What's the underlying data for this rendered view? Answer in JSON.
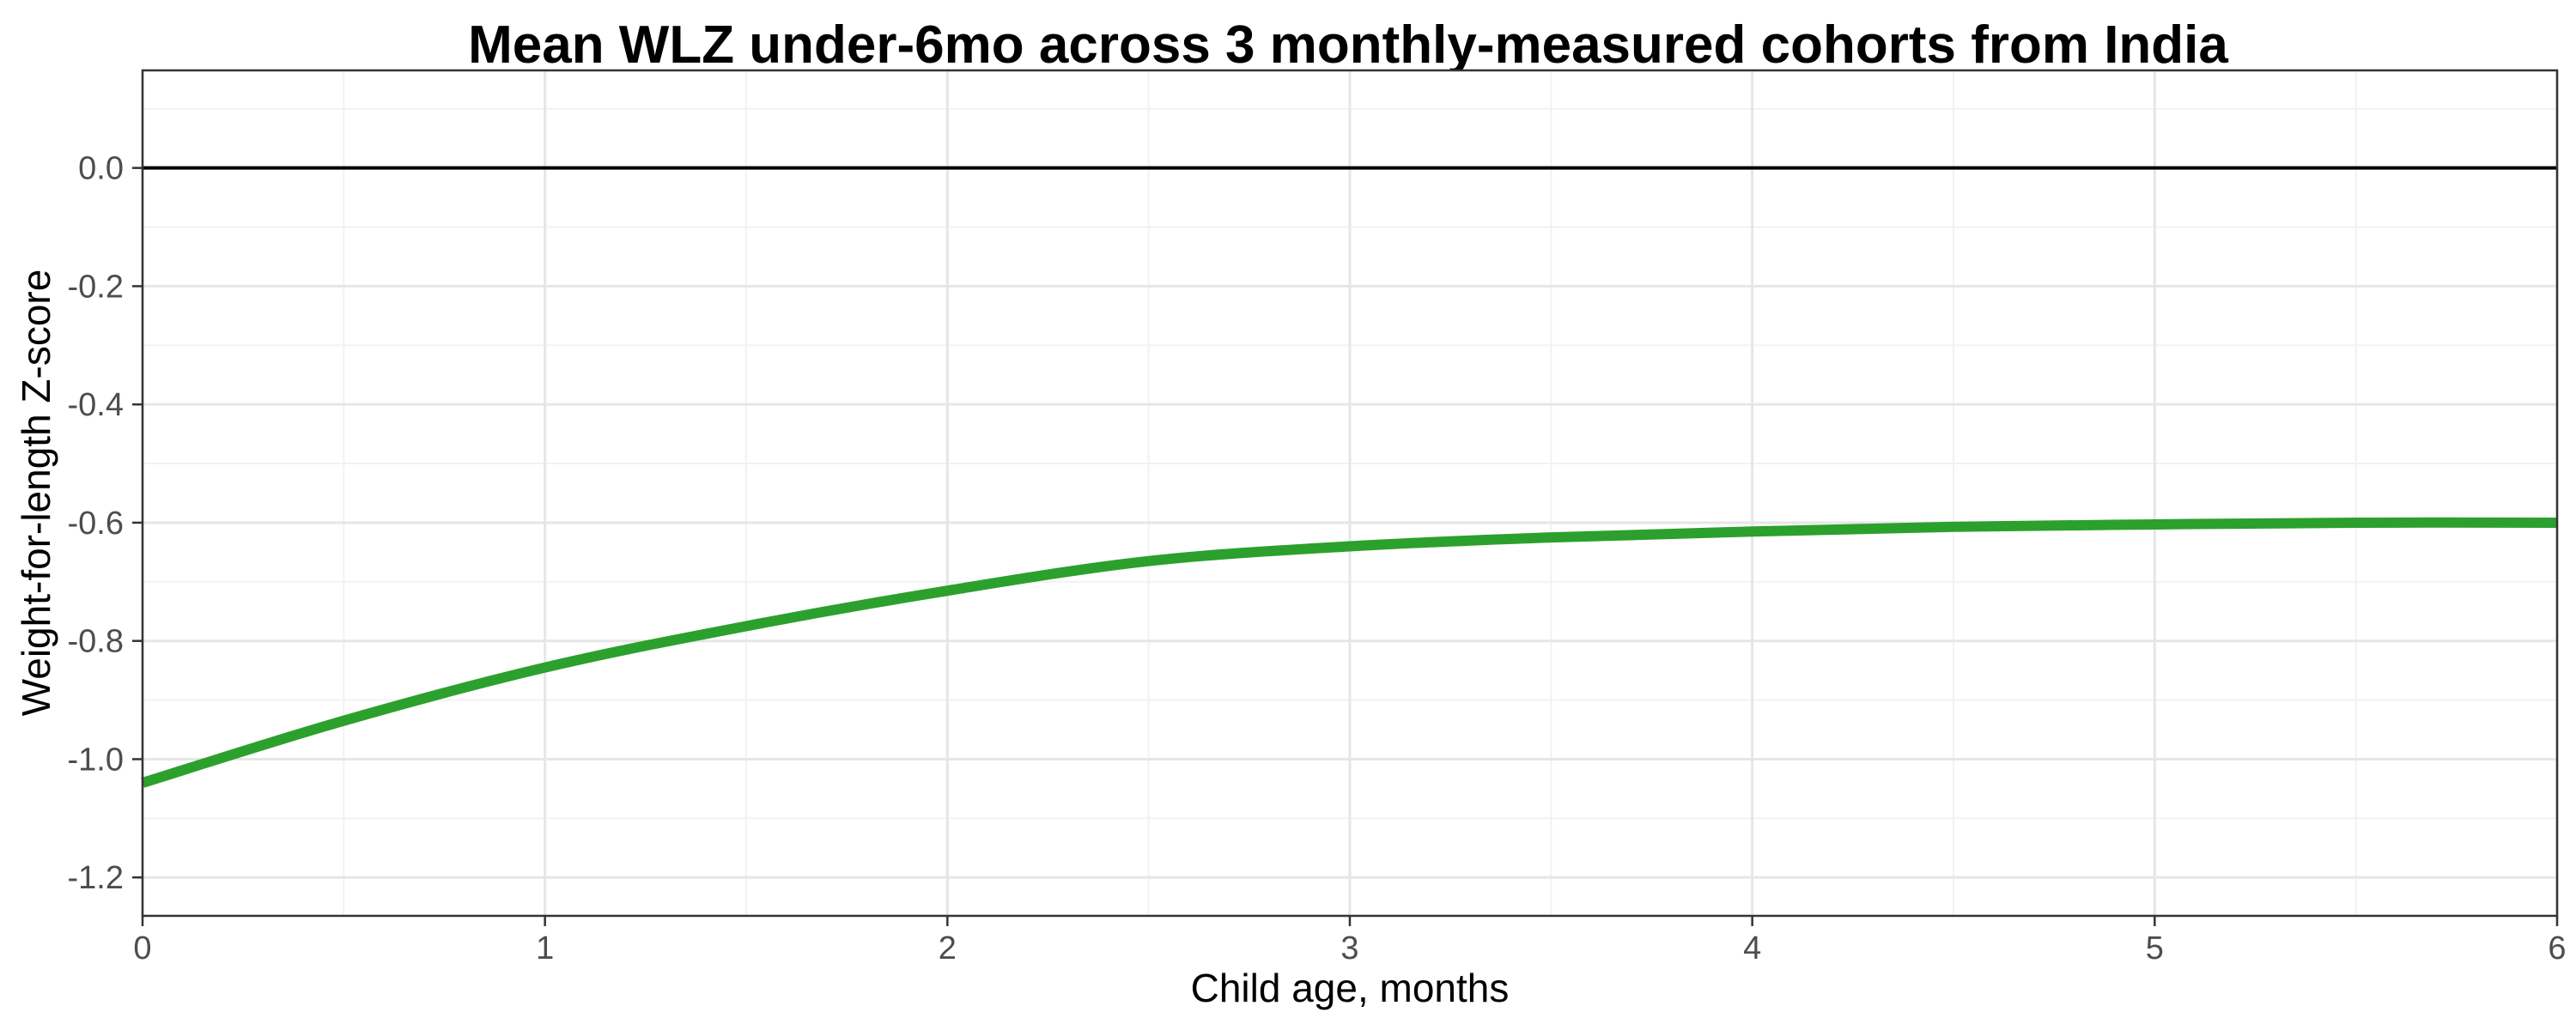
{
  "chart_data": {
    "type": "line",
    "title": "Mean WLZ under-6mo across 3 monthly-measured cohorts from India",
    "xlabel": "Child age, months",
    "ylabel": "Weight-for-length Z-score",
    "xlim": [
      0,
      6
    ],
    "ylim": [
      -1.265,
      0.165
    ],
    "x_ticks": [
      0,
      1,
      2,
      3,
      4,
      5,
      6
    ],
    "x_tick_labels": [
      "0",
      "1",
      "2",
      "3",
      "4",
      "5",
      "6"
    ],
    "y_ticks": [
      0.0,
      -0.2,
      -0.4,
      -0.6,
      -0.8,
      -1.0,
      -1.2
    ],
    "y_tick_labels": [
      "0.0",
      "-0.2",
      "-0.4",
      "-0.6",
      "-0.8",
      "-1.0",
      "-1.2"
    ],
    "grid": true,
    "reference_line": {
      "y": 0.0,
      "color": "#000000"
    },
    "series": [
      {
        "color": "#2ca02c",
        "x": [
          0,
          0.5,
          1.0,
          1.5,
          2.0,
          2.5,
          3.0,
          3.5,
          4.0,
          4.5,
          5.0,
          5.5,
          6.0
        ],
        "y": [
          -1.04,
          -0.935,
          -0.845,
          -0.775,
          -0.715,
          -0.665,
          -0.64,
          -0.625,
          -0.615,
          -0.607,
          -0.603,
          -0.6,
          -0.6
        ]
      }
    ]
  }
}
